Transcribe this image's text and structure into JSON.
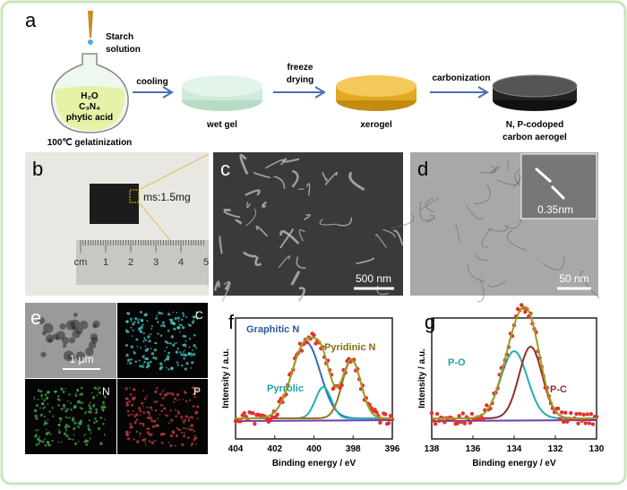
{
  "panel_a": {
    "label": "a",
    "dropper": [
      "Starch",
      "solution"
    ],
    "flask": [
      "H₂O",
      "C₃N₄",
      "phytic acid"
    ],
    "start": "100℃ gelatinization",
    "arrow1": "cooling",
    "step1": "wet gel",
    "arrow2": [
      "freeze",
      "drying"
    ],
    "step2": "xerogel",
    "arrow3": "carbonization",
    "step3": [
      "N, P-codoped",
      "carbon aerogel"
    ]
  },
  "panel_b": {
    "label": "b",
    "mass": "ms:1.5mg",
    "ruler": [
      "cm",
      "1",
      "2",
      "3",
      "4",
      "5"
    ]
  },
  "panel_c": {
    "label": "c",
    "scale": "500 nm"
  },
  "panel_d": {
    "label": "d",
    "spacing": "0.35nm",
    "scale": "50 nm"
  },
  "panel_e": {
    "label": "e",
    "scale": "1 μm",
    "maps": [
      "C",
      "N",
      "P"
    ]
  },
  "panel_f": {
    "label": "f",
    "xlabel": "Binding energy / eV",
    "ylabel": "Intensity / a.u.",
    "xlim": [
      404,
      396
    ],
    "xticks": [
      404,
      402,
      400,
      398,
      396
    ],
    "peaks": [
      "Graphitic N",
      "Pyridinic N",
      "Pyrrolic"
    ]
  },
  "panel_g": {
    "label": "g",
    "xlabel": "Binding energy / eV",
    "ylabel": "Intensity / a.u.",
    "xlim": [
      138,
      130
    ],
    "xticks": [
      138,
      136,
      134,
      132,
      130
    ],
    "peaks": [
      "P-O",
      "P-C"
    ]
  }
}
